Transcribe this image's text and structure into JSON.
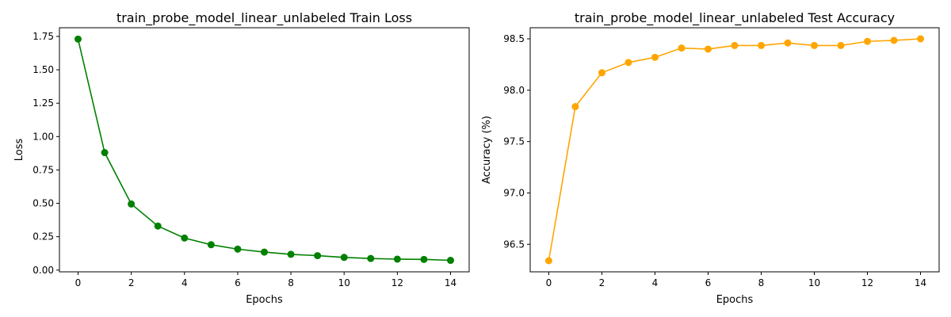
{
  "chart_data": [
    {
      "type": "line",
      "title": "train_probe_model_linear_unlabeled Train Loss",
      "xlabel": "Epochs",
      "ylabel": "Loss",
      "color": "#008000",
      "marker": "circle",
      "xlim": [
        -0.7,
        14.7
      ],
      "ylim": [
        -0.013,
        1.815
      ],
      "x_ticks": [
        0,
        2,
        4,
        6,
        8,
        10,
        12,
        14
      ],
      "y_ticks": [
        0.0,
        0.25,
        0.5,
        0.75,
        1.0,
        1.25,
        1.5,
        1.75
      ],
      "y_tick_labels": [
        "0.00",
        "0.25",
        "0.50",
        "0.75",
        "1.00",
        "1.25",
        "1.50",
        "1.75"
      ],
      "grid": false,
      "x": [
        0,
        1,
        2,
        3,
        4,
        5,
        6,
        7,
        8,
        9,
        10,
        11,
        12,
        13,
        14
      ],
      "y": [
        1.73,
        0.88,
        0.495,
        0.33,
        0.24,
        0.19,
        0.157,
        0.135,
        0.118,
        0.108,
        0.095,
        0.087,
        0.082,
        0.08,
        0.073
      ]
    },
    {
      "type": "line",
      "title": "train_probe_model_linear_unlabeled Test Accuracy",
      "xlabel": "Epochs",
      "ylabel": "Accuracy (%)",
      "color": "#FFA500",
      "marker": "circle",
      "xlim": [
        -0.7,
        14.7
      ],
      "ylim": [
        96.232,
        98.608
      ],
      "x_ticks": [
        0,
        2,
        4,
        6,
        8,
        10,
        12,
        14
      ],
      "y_ticks": [
        96.5,
        97.0,
        97.5,
        98.0,
        98.5
      ],
      "y_tick_labels": [
        "96.5",
        "97.0",
        "97.5",
        "98.0",
        "98.5"
      ],
      "grid": false,
      "x": [
        0,
        1,
        2,
        3,
        4,
        5,
        6,
        7,
        8,
        9,
        10,
        11,
        12,
        13,
        14
      ],
      "y": [
        96.34,
        97.84,
        98.17,
        98.27,
        98.32,
        98.41,
        98.4,
        98.435,
        98.435,
        98.46,
        98.435,
        98.435,
        98.475,
        98.485,
        98.5
      ]
    }
  ]
}
